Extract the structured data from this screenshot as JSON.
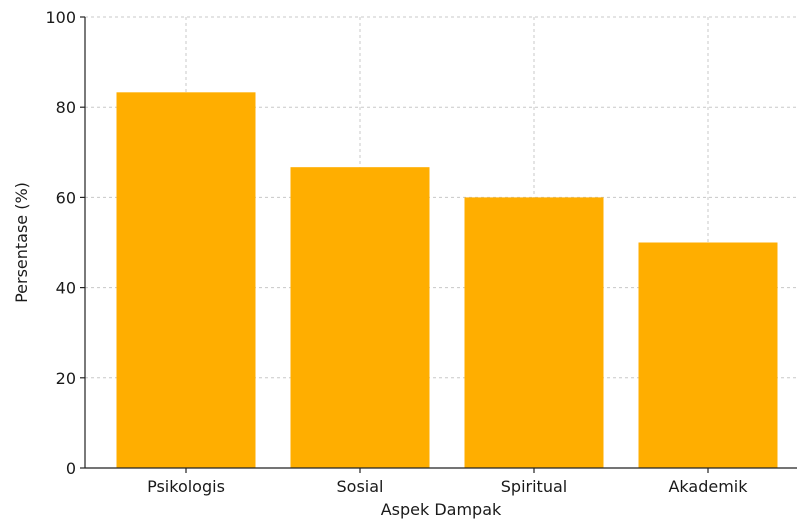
{
  "chart_data": {
    "type": "bar",
    "title": "",
    "xlabel": "Aspek Dampak",
    "ylabel": "Persentase (%)",
    "categories": [
      "Psikologis",
      "Sosial",
      "Spiritual",
      "Akademik"
    ],
    "values": [
      83.3,
      66.7,
      60,
      50
    ],
    "ylim": [
      0,
      100
    ],
    "yticks": [
      0,
      20,
      40,
      60,
      80,
      100
    ],
    "grid": true,
    "bar_color": "#FFAE00"
  }
}
